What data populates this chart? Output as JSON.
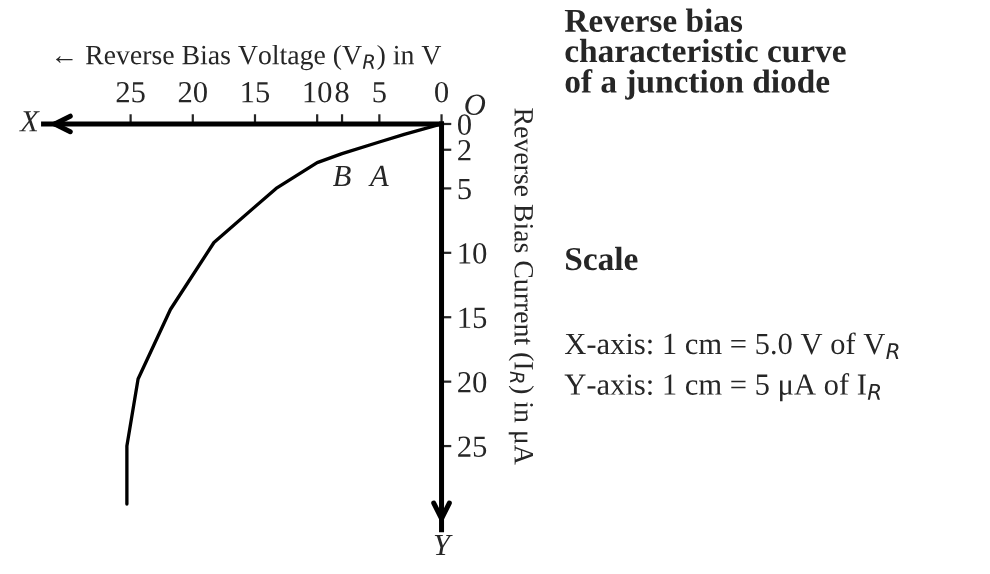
{
  "chart_data": {
    "type": "line",
    "title": "Reverse bias\ncharacteristic curve\nof a junction diode",
    "subtitle": "Scale",
    "xlabel": "← Reverse Bias Voltage (V$_{R}$) in V",
    "ylabel": "Reverse Bias Current (I$_{R}$) in μA",
    "x": [
      0,
      3,
      5,
      8,
      10,
      13.3,
      18.3,
      21.8,
      24.4,
      25.3,
      25.3
    ],
    "series": [
      {
        "color": "#000000",
        "values": [
          0,
          0.8,
          1.4,
          2.3,
          3,
          5,
          9.2,
          14.4,
          19.8,
          25,
          29.5
        ]
      }
    ],
    "xlim": [
      32,
      0
    ],
    "ylim": [
      31.5,
      0
    ],
    "xticks": [
      0,
      5,
      8,
      10,
      15,
      20,
      25
    ],
    "yticks": [
      0,
      2,
      5,
      10,
      15,
      20,
      25
    ],
    "annotations": [
      "X",
      "Y",
      {
        "text": "O",
        "x": 0,
        "y": 0
      },
      {
        "text": "B",
        "x": 8,
        "y": 2.3
      },
      {
        "text": "A",
        "x": 5,
        "y": 2.3
      },
      "X-axis: 1 cm = 5.0 V of V$_{R}$",
      "Y-axis: 1 cm = 5 μA of I$_{R}$"
    ],
    "grid": false,
    "legend": false,
    "marker": "none",
    "line_style": "solid"
  }
}
